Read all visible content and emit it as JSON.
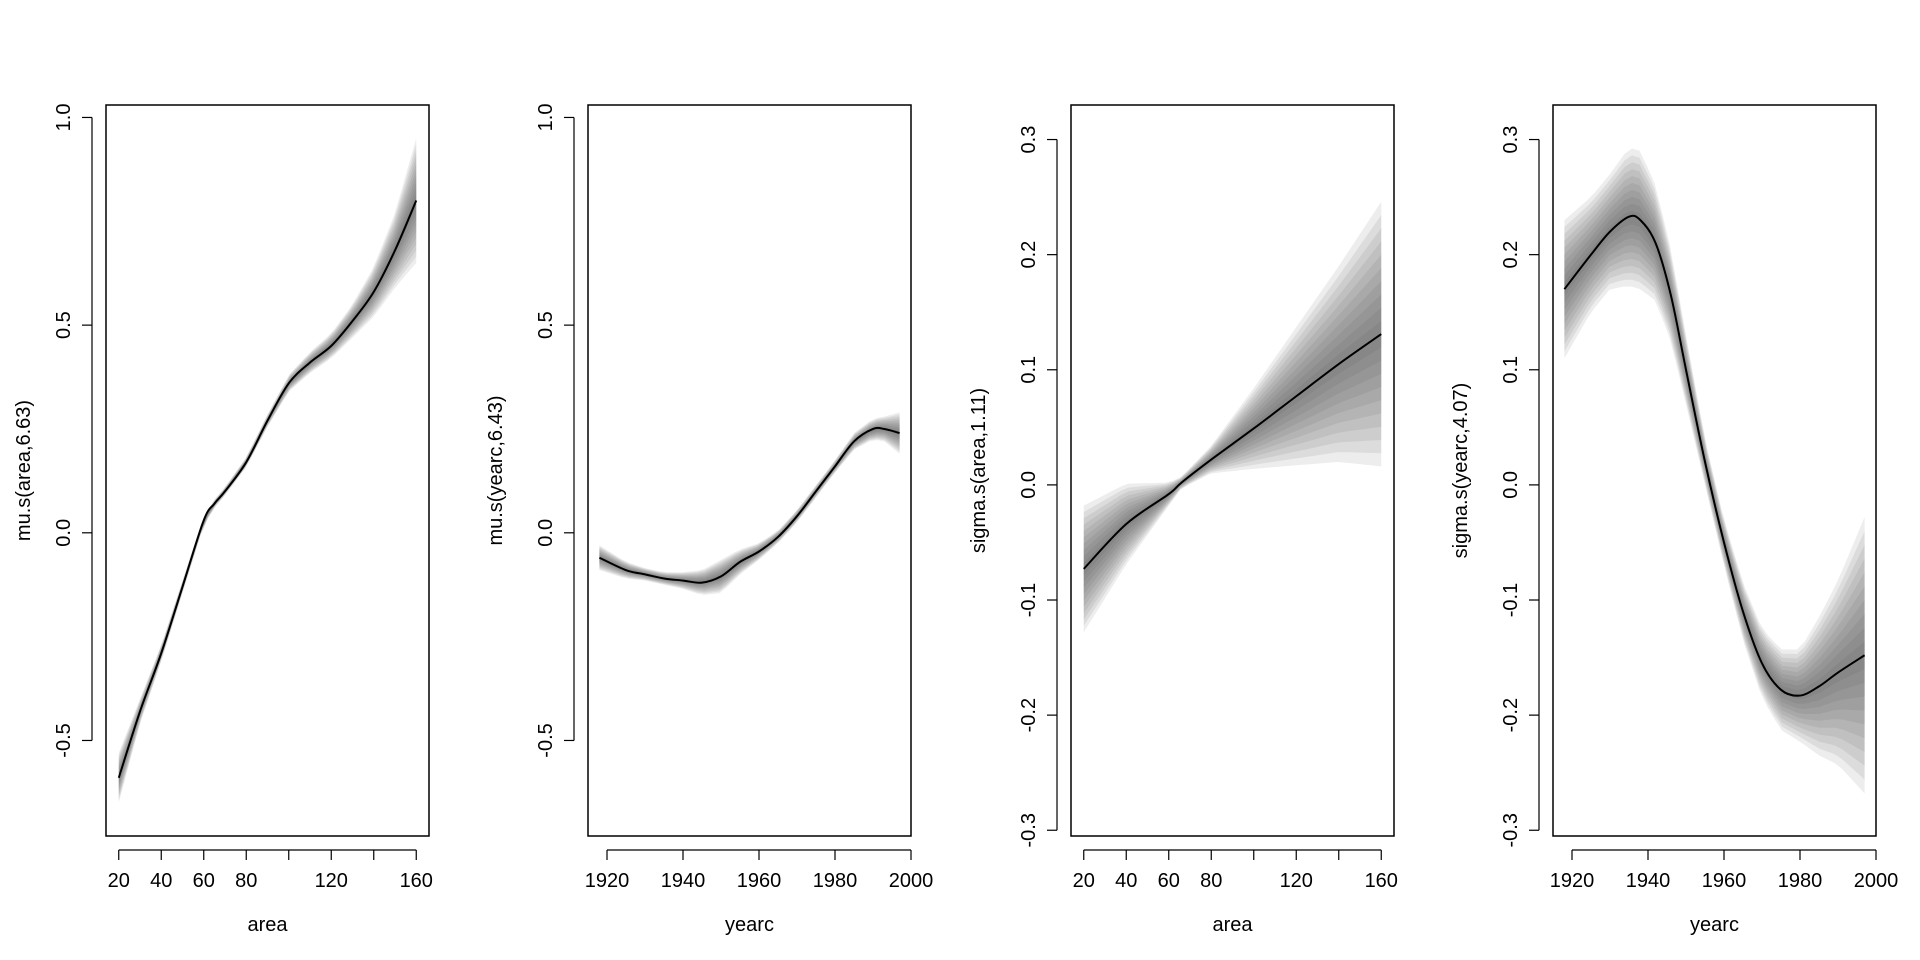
{
  "chart_data": [
    {
      "type": "line",
      "title": "",
      "xlabel": "area",
      "ylabel": "mu.s(area,6.63)",
      "xlim": [
        14,
        166
      ],
      "ylim": [
        -0.73,
        1.03
      ],
      "xticks": [
        20,
        40,
        60,
        80,
        100,
        120,
        140,
        160
      ],
      "xtick_labels": [
        "20",
        "40",
        "60",
        "80",
        "",
        "120",
        "",
        "160"
      ],
      "yticks": [
        -0.5,
        0.0,
        0.5,
        1.0
      ],
      "ytick_labels": [
        "-0.5",
        "0.0",
        "0.5",
        "1.0"
      ],
      "grid": false,
      "legend": "none",
      "line_color": "#000000",
      "band_color": "#4d4d4d",
      "series": [
        {
          "x": [
            20,
            30,
            40,
            50,
            60,
            65,
            70,
            80,
            90,
            100,
            110,
            120,
            130,
            140,
            150,
            160
          ],
          "y": [
            -0.59,
            -0.43,
            -0.29,
            -0.13,
            0.03,
            0.07,
            0.1,
            0.17,
            0.27,
            0.36,
            0.41,
            0.45,
            0.51,
            0.58,
            0.68,
            0.8
          ],
          "hw": [
            0.06,
            0.03,
            0.02,
            0.015,
            0.012,
            0.01,
            0.01,
            0.012,
            0.015,
            0.02,
            0.025,
            0.03,
            0.04,
            0.06,
            0.09,
            0.15
          ]
        }
      ]
    },
    {
      "type": "line",
      "title": "",
      "xlabel": "yearc",
      "ylabel": "mu.s(yearc,6.43)",
      "xlim": [
        1915,
        2000
      ],
      "ylim": [
        -0.73,
        1.03
      ],
      "xticks": [
        1920,
        1940,
        1960,
        1980,
        2000
      ],
      "xtick_labels": [
        "1920",
        "1940",
        "1960",
        "1980",
        "2000"
      ],
      "yticks": [
        -0.5,
        0.0,
        0.5,
        1.0
      ],
      "ytick_labels": [
        "-0.5",
        "0.0",
        "0.5",
        "1.0"
      ],
      "grid": false,
      "legend": "none",
      "line_color": "#000000",
      "band_color": "#4d4d4d",
      "series": [
        {
          "x": [
            1918,
            1925,
            1930,
            1935,
            1940,
            1945,
            1950,
            1955,
            1960,
            1965,
            1970,
            1975,
            1980,
            1985,
            1990,
            1993,
            1997
          ],
          "y": [
            -0.06,
            -0.09,
            -0.1,
            -0.11,
            -0.115,
            -0.12,
            -0.105,
            -0.07,
            -0.045,
            -0.01,
            0.04,
            0.1,
            0.16,
            0.22,
            0.25,
            0.25,
            0.24
          ],
          "hw": [
            0.03,
            0.02,
            0.015,
            0.015,
            0.02,
            0.03,
            0.04,
            0.03,
            0.02,
            0.015,
            0.015,
            0.015,
            0.015,
            0.02,
            0.025,
            0.03,
            0.05
          ]
        }
      ]
    },
    {
      "type": "line",
      "title": "",
      "xlabel": "area",
      "ylabel": "sigma.s(area,1.11)",
      "xlim": [
        14,
        166
      ],
      "ylim": [
        -0.305,
        0.33
      ],
      "xticks": [
        20,
        40,
        60,
        80,
        100,
        120,
        140,
        160
      ],
      "xtick_labels": [
        "20",
        "40",
        "60",
        "80",
        "",
        "120",
        "",
        "160"
      ],
      "yticks": [
        -0.3,
        -0.2,
        -0.1,
        0.0,
        0.1,
        0.2,
        0.3
      ],
      "ytick_labels": [
        "-0.3",
        "-0.2",
        "-0.1",
        "0.0",
        "0.1",
        "0.2",
        "0.3"
      ],
      "grid": false,
      "legend": "none",
      "line_color": "#000000",
      "band_color": "#4d4d4d",
      "series": [
        {
          "x": [
            20,
            40,
            60,
            66,
            80,
            100,
            120,
            140,
            160
          ],
          "y": [
            -0.073,
            -0.034,
            -0.008,
            0.002,
            0.022,
            0.049,
            0.077,
            0.105,
            0.131
          ],
          "hw": [
            0.055,
            0.035,
            0.01,
            0.005,
            0.012,
            0.035,
            0.06,
            0.085,
            0.115
          ]
        }
      ]
    },
    {
      "type": "line",
      "title": "",
      "xlabel": "yearc",
      "ylabel": "sigma.s(yearc,4.07)",
      "xlim": [
        1915,
        2000
      ],
      "ylim": [
        -0.305,
        0.33
      ],
      "xticks": [
        1920,
        1940,
        1960,
        1980,
        2000
      ],
      "xtick_labels": [
        "1920",
        "1940",
        "1960",
        "1980",
        "2000"
      ],
      "yticks": [
        -0.3,
        -0.2,
        -0.1,
        0.0,
        0.1,
        0.2,
        0.3
      ],
      "ytick_labels": [
        "-0.3",
        "-0.2",
        "-0.1",
        "0.0",
        "0.1",
        "0.2",
        "0.3"
      ],
      "grid": false,
      "legend": "none",
      "line_color": "#000000",
      "band_color": "#4d4d4d",
      "series": [
        {
          "x": [
            1918,
            1925,
            1930,
            1935,
            1938,
            1942,
            1946,
            1950,
            1955,
            1960,
            1965,
            1970,
            1975,
            1980,
            1985,
            1990,
            1997
          ],
          "y": [
            0.17,
            0.2,
            0.22,
            0.233,
            0.23,
            0.21,
            0.165,
            0.1,
            0.02,
            -0.05,
            -0.11,
            -0.155,
            -0.178,
            -0.183,
            -0.175,
            -0.163,
            -0.148
          ],
          "hw": [
            0.06,
            0.05,
            0.05,
            0.06,
            0.06,
            0.05,
            0.04,
            0.03,
            0.02,
            0.02,
            0.025,
            0.03,
            0.035,
            0.04,
            0.06,
            0.08,
            0.12
          ]
        }
      ]
    }
  ]
}
